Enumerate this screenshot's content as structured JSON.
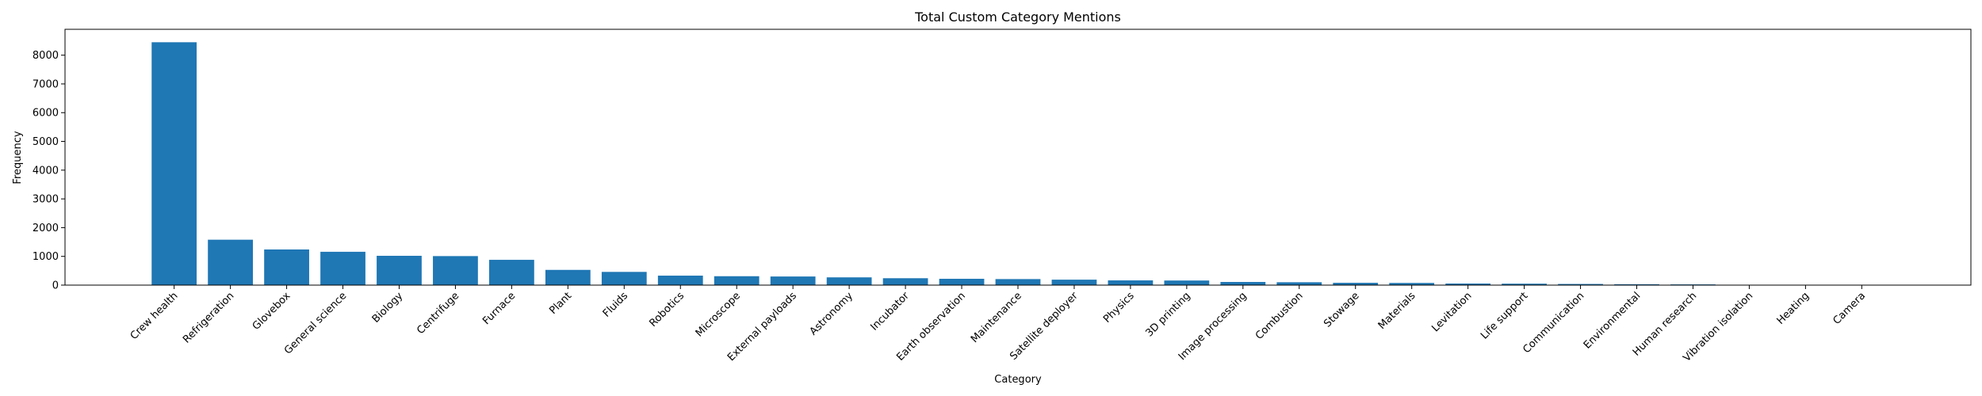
{
  "chart_data": {
    "type": "bar",
    "title": "Total Custom Category Mentions",
    "xlabel": "Category",
    "ylabel": "Frequency",
    "ylim": [
      0,
      8900
    ],
    "yticks": [
      0,
      1000,
      2000,
      3000,
      4000,
      5000,
      6000,
      7000,
      8000
    ],
    "color": "#1f77b4",
    "grid": false,
    "categories": [
      "Crew health",
      "Refrigeration",
      "Glovebox",
      "General science",
      "Biology",
      "Centrifuge",
      "Furnace",
      "Plant",
      "Fluids",
      "Robotics",
      "Microscope",
      "External payloads",
      "Astronomy",
      "Incubator",
      "Earth observation",
      "Maintenance",
      "Satellite deployer",
      "Physics",
      "3D printing",
      "Image processing",
      "Combustion",
      "Stowage",
      "Materials",
      "Levitation",
      "Life support",
      "Communication",
      "Environmental",
      "Human research",
      "Vibration isolation",
      "Heating",
      "Camera"
    ],
    "values": [
      8450,
      1580,
      1240,
      1160,
      1020,
      1010,
      880,
      530,
      460,
      330,
      310,
      300,
      270,
      240,
      220,
      210,
      190,
      165,
      160,
      110,
      100,
      80,
      75,
      55,
      50,
      40,
      30,
      25,
      8,
      5,
      3
    ]
  }
}
